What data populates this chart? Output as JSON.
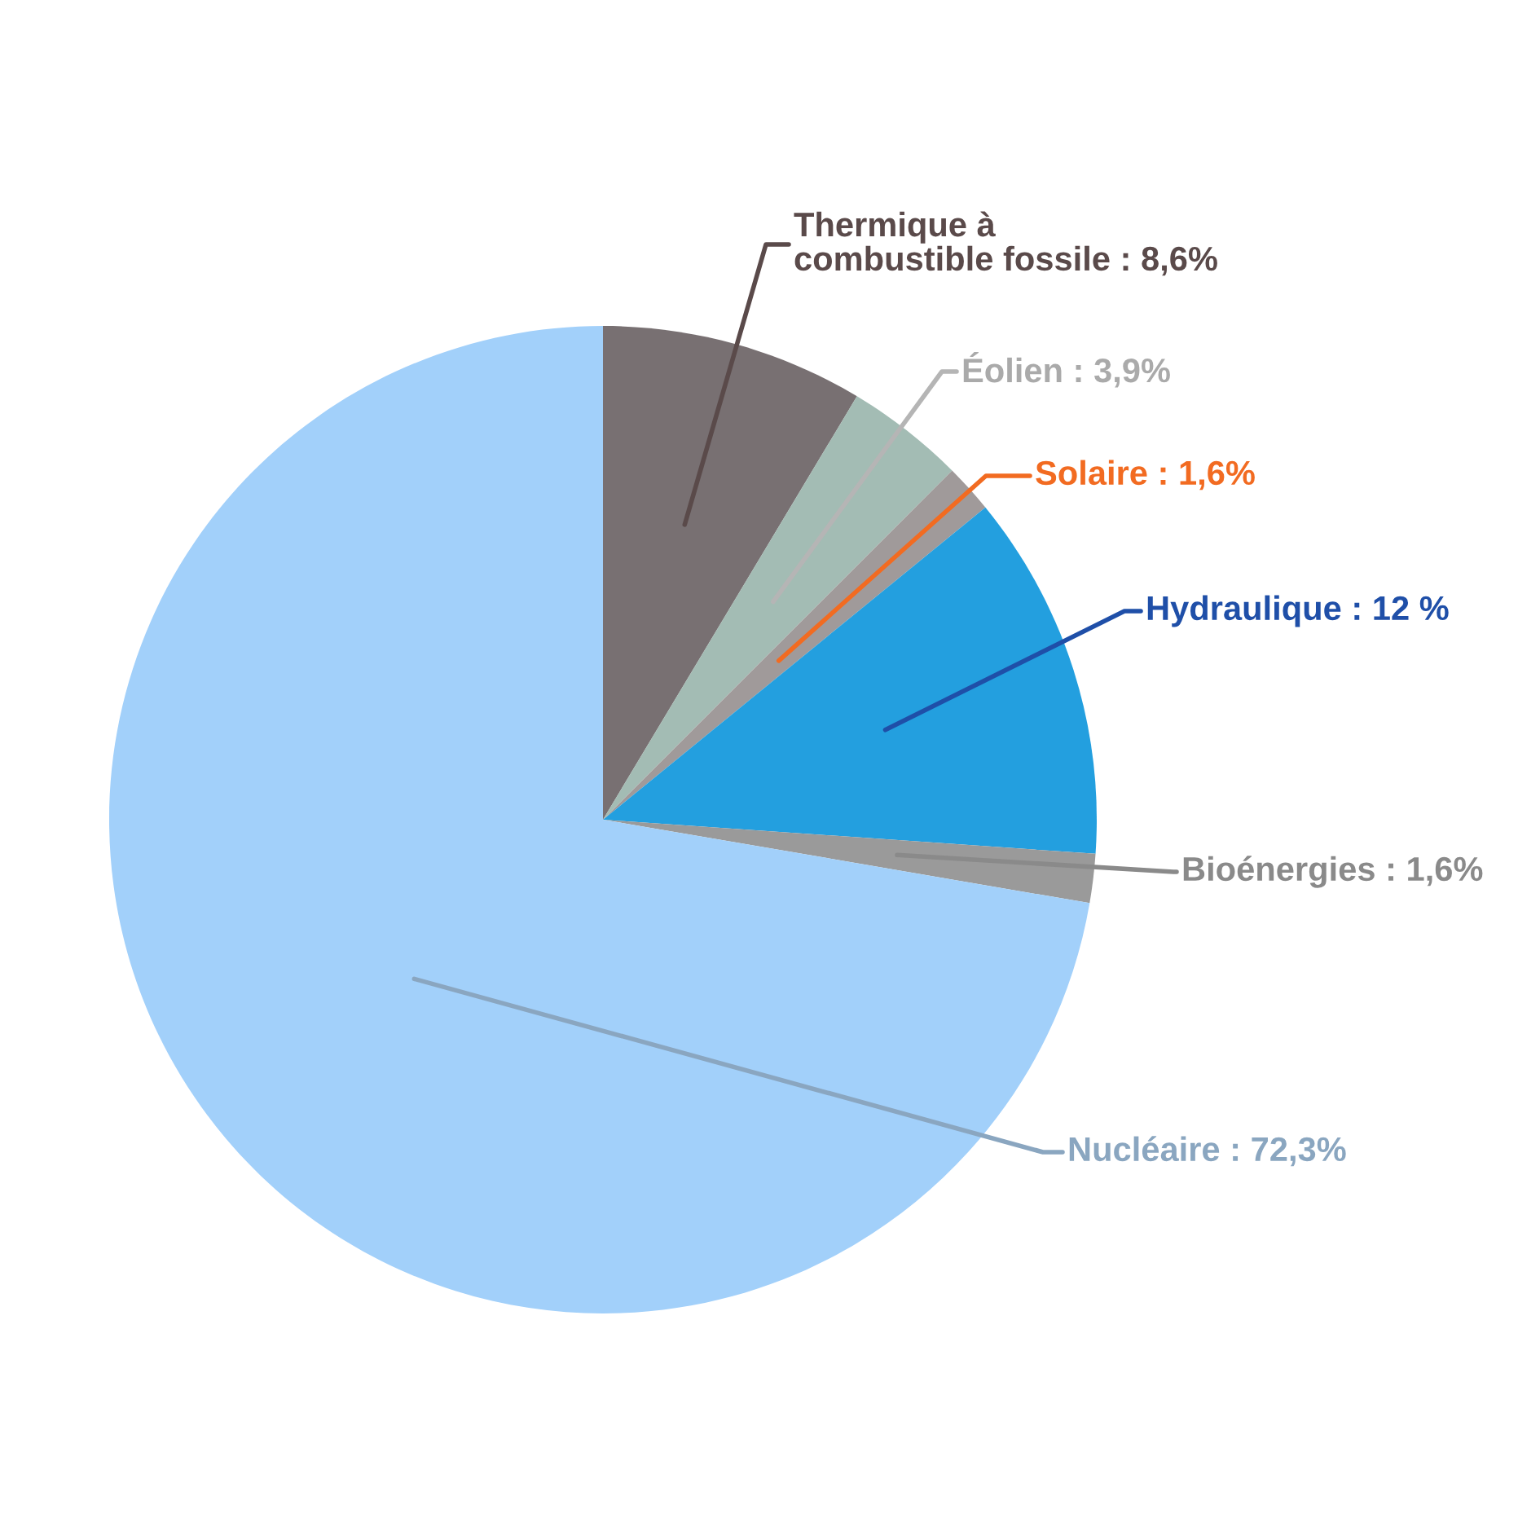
{
  "chart_data": {
    "type": "pie",
    "categories": [
      "Thermique à\ncombustible fossile",
      "Éolien",
      "Solaire",
      "Hydraulique",
      "Bioénergies",
      "Nucléaire"
    ],
    "values": [
      8.6,
      3.9,
      1.6,
      12,
      1.6,
      72.3
    ],
    "value_labels": [
      "8,6%",
      "3,9%",
      "1,6%",
      "12 %",
      "1,6%",
      "72,3%"
    ],
    "colors": [
      "#787072",
      "#a3bcb4",
      "#a09a9a",
      "#239fdf",
      "#9a9a9a",
      "#a2d0fa"
    ],
    "legend": false
  }
}
